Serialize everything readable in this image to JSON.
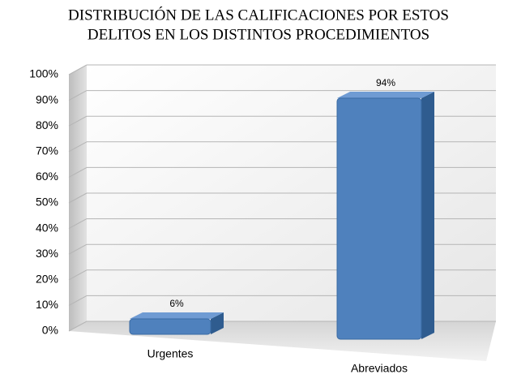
{
  "chart_data": {
    "type": "bar3d",
    "title": [
      "DISTRIBUCIÓN DE LAS CALIFICACIONES POR ESTOS",
      "DELITOS EN  LOS DISTINTOS PROCEDIMIENTOS"
    ],
    "categories": [
      "Urgentes",
      "Abreviados"
    ],
    "values": [
      6,
      94
    ],
    "value_labels": [
      "6%",
      "94%"
    ],
    "color": "#4f81bd",
    "ylim": [
      0,
      100
    ],
    "yticks": [
      {
        "value": 0,
        "label": "0%"
      },
      {
        "value": 10,
        "label": "10%"
      },
      {
        "value": 20,
        "label": "20%"
      },
      {
        "value": 30,
        "label": "30%"
      },
      {
        "value": 40,
        "label": "40%"
      },
      {
        "value": 50,
        "label": "50%"
      },
      {
        "value": 60,
        "label": "60%"
      },
      {
        "value": 70,
        "label": "70%"
      },
      {
        "value": 80,
        "label": "80%"
      },
      {
        "value": 90,
        "label": "90%"
      },
      {
        "value": 100,
        "label": "100%"
      }
    ],
    "grid": true
  }
}
